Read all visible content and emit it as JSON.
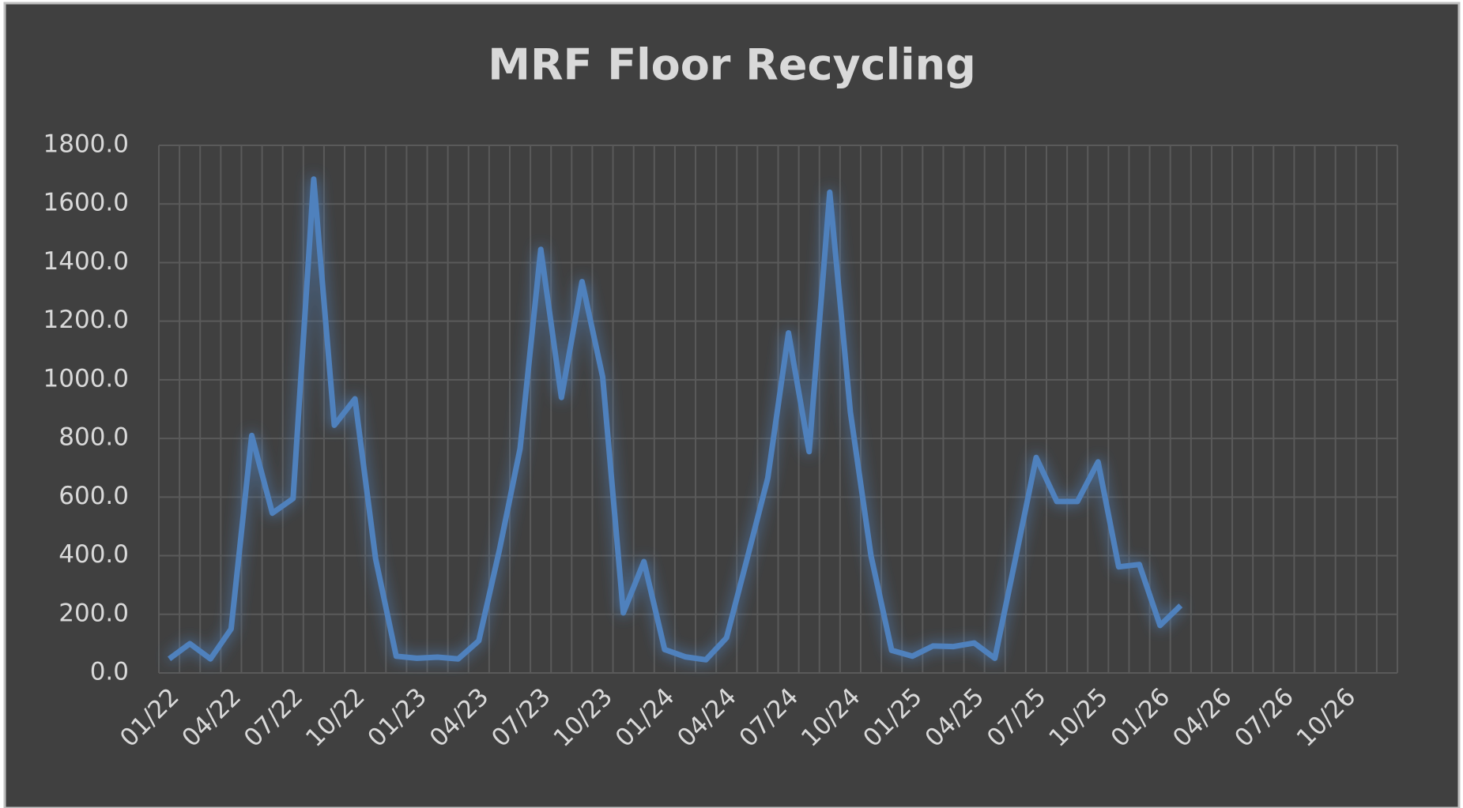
{
  "chart_data": {
    "type": "line",
    "title": "MRF Floor Recycling",
    "categories": [
      "01/22",
      null,
      null,
      "04/22",
      null,
      null,
      "07/22",
      null,
      null,
      "10/22",
      null,
      null,
      "01/23",
      null,
      null,
      "04/23",
      null,
      null,
      "07/23",
      null,
      null,
      "10/23",
      null,
      null,
      "01/24",
      null,
      null,
      "04/24",
      null,
      null,
      "07/24",
      null,
      null,
      "10/24",
      null,
      null,
      "01/25",
      null,
      null,
      "04/25",
      null,
      null,
      "07/25",
      null,
      null,
      "10/25",
      null,
      null,
      "01/26",
      null,
      null,
      "04/26",
      null,
      null,
      "07/26",
      null,
      null,
      "10/26",
      null,
      null
    ],
    "series": [
      {
        "color": "#4f81bd",
        "values": [
          48,
          100,
          48,
          150,
          810,
          545,
          595,
          1685,
          845,
          935,
          390,
          57,
          50,
          54,
          48,
          110,
          420,
          765,
          1445,
          940,
          1335,
          1010,
          205,
          380,
          80,
          55,
          45,
          120,
          390,
          665,
          1160,
          755,
          1640,
          890,
          400,
          77,
          57,
          92,
          90,
          102,
          50,
          390,
          735,
          585,
          585,
          720,
          362,
          370,
          162,
          230,
          null,
          null,
          null,
          null,
          null,
          null,
          null,
          null,
          null,
          null
        ]
      }
    ],
    "ylim": [
      0,
      1800
    ],
    "yticks": [
      {
        "value": 0,
        "label": "0.0"
      },
      {
        "value": 200,
        "label": "200.0"
      },
      {
        "value": 400,
        "label": "400.0"
      },
      {
        "value": 600,
        "label": "600.0"
      },
      {
        "value": 800,
        "label": "800.0"
      },
      {
        "value": 1000,
        "label": "1000.0"
      },
      {
        "value": 1200,
        "label": "1200.0"
      },
      {
        "value": 1400,
        "label": "1400.0"
      },
      {
        "value": 1600,
        "label": "1600.0"
      },
      {
        "value": 1800,
        "label": "1800.0"
      }
    ],
    "grid": true
  }
}
